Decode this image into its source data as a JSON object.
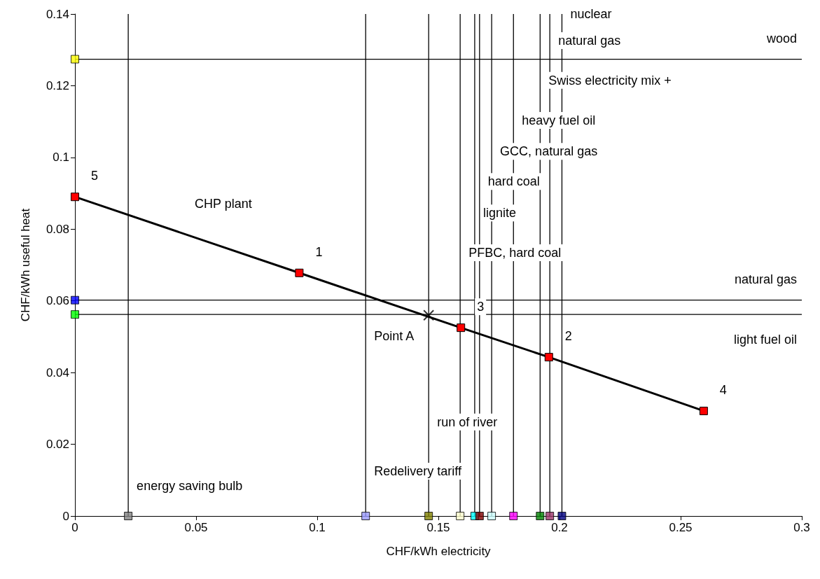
{
  "chart_data": {
    "type": "scatter",
    "xlabel": "CHF/kWh electricity",
    "ylabel": "CHF/kWh useful heat",
    "xlim": [
      0,
      0.3
    ],
    "xticks": [
      0,
      0.05,
      0.1,
      0.15,
      0.2,
      0.25,
      0.3
    ],
    "ylim": [
      0,
      0.14
    ],
    "yticks": [
      0,
      0.02,
      0.04,
      0.06,
      0.08,
      0.1,
      0.12,
      0.14
    ],
    "grid": false,
    "marker": "square",
    "series": [
      {
        "type": "line",
        "color": "#000000",
        "x": [
          0,
          0.0926,
          0.1593,
          0.1956,
          0.2595
        ],
        "values": [
          0.089,
          0.0678,
          0.0525,
          0.0443,
          0.0293
        ],
        "colors": [
          "#ff0000",
          "#ff0000",
          "#ff0000",
          "#ff0000",
          "#ff0000"
        ]
      },
      {
        "marker": "cross",
        "color": "#000000",
        "x": [
          0.146
        ],
        "values": [
          0.056
        ]
      },
      {
        "x": [
          0.022,
          0.12,
          0.146,
          0.159,
          0.165,
          0.167,
          0.172,
          0.181,
          0.192,
          0.196,
          0.201
        ],
        "values": [
          0,
          0,
          0,
          0,
          0,
          0,
          0,
          0,
          0,
          0,
          0
        ],
        "colors": [
          "#808080",
          "#9999ff",
          "#808000",
          "#ffffcc",
          "#00ffff",
          "#800000",
          "#ccffff",
          "#ff00ff",
          "#008000",
          "#993366",
          "#000080"
        ]
      },
      {
        "x": [
          0,
          0,
          0
        ],
        "values": [
          0.1274,
          0.0602,
          0.0562
        ],
        "colors": [
          "#ffff00",
          "#0000ff",
          "#00ff00"
        ]
      }
    ],
    "ref_lines": [
      {
        "axis": "x",
        "value": 0.022,
        "color": "#000000"
      },
      {
        "axis": "x",
        "value": 0.12,
        "color": "#000000"
      },
      {
        "axis": "x",
        "value": 0.146,
        "color": "#000000"
      },
      {
        "axis": "x",
        "value": 0.159,
        "color": "#000000"
      },
      {
        "axis": "x",
        "value": 0.165,
        "color": "#000000"
      },
      {
        "axis": "x",
        "value": 0.167,
        "color": "#000000"
      },
      {
        "axis": "x",
        "value": 0.172,
        "color": "#000000"
      },
      {
        "axis": "x",
        "value": 0.181,
        "color": "#000000"
      },
      {
        "axis": "x",
        "value": 0.192,
        "color": "#000000"
      },
      {
        "axis": "x",
        "value": 0.196,
        "color": "#000000"
      },
      {
        "axis": "x",
        "value": 0.201,
        "color": "#000000"
      },
      {
        "axis": "y",
        "value": 0.1274,
        "color": "#000000"
      },
      {
        "axis": "y",
        "value": 0.0602,
        "color": "#000000"
      },
      {
        "axis": "y",
        "value": 0.0562,
        "color": "#000000"
      }
    ],
    "annotations": [
      {
        "text": "nuclear",
        "x": 0.201,
        "y": 0.14
      },
      {
        "text": "natural gas",
        "x": 0.196,
        "y": 0.1326
      },
      {
        "text": "wood",
        "x": 0.3,
        "y": 0.1274
      },
      {
        "text": "Swiss electricity mix +",
        "x": 0.192,
        "y": 0.1215
      },
      {
        "text": "heavy fuel oil",
        "x": 0.181,
        "y": 0.1103
      },
      {
        "text": "GCC, natural gas",
        "x": 0.172,
        "y": 0.1017
      },
      {
        "text": "hard coal",
        "x": 0.167,
        "y": 0.0933
      },
      {
        "text": "lignite",
        "x": 0.165,
        "y": 0.0845
      },
      {
        "text": "PFBC, hard coal",
        "x": 0.159,
        "y": 0.0734
      },
      {
        "text": "CHP plant",
        "x": 0.0428,
        "y": 0.0792
      },
      {
        "text": "natural gas",
        "x": 0.3,
        "y": 0.0602
      },
      {
        "text": "light fuel oil",
        "x": 0.3,
        "y": 0.0562
      },
      {
        "text": "Point A",
        "x": 0.12,
        "y": 0.0502
      },
      {
        "text": "run of river",
        "x": 0.146,
        "y": 0.0262
      },
      {
        "text": "Redelivery tariff",
        "x": 0.12,
        "y": 0.0125
      },
      {
        "text": "energy saving bulb",
        "x": 0.022,
        "y": 0.0084
      },
      {
        "text": "5",
        "x": 0,
        "y": 0.089
      },
      {
        "text": "1",
        "x": 0.0926,
        "y": 0.0678
      },
      {
        "text": "3",
        "x": 0.1593,
        "y": 0.0525
      },
      {
        "text": "2",
        "x": 0.1956,
        "y": 0.0443
      },
      {
        "text": "4",
        "x": 0.2595,
        "y": 0.0293
      }
    ]
  }
}
